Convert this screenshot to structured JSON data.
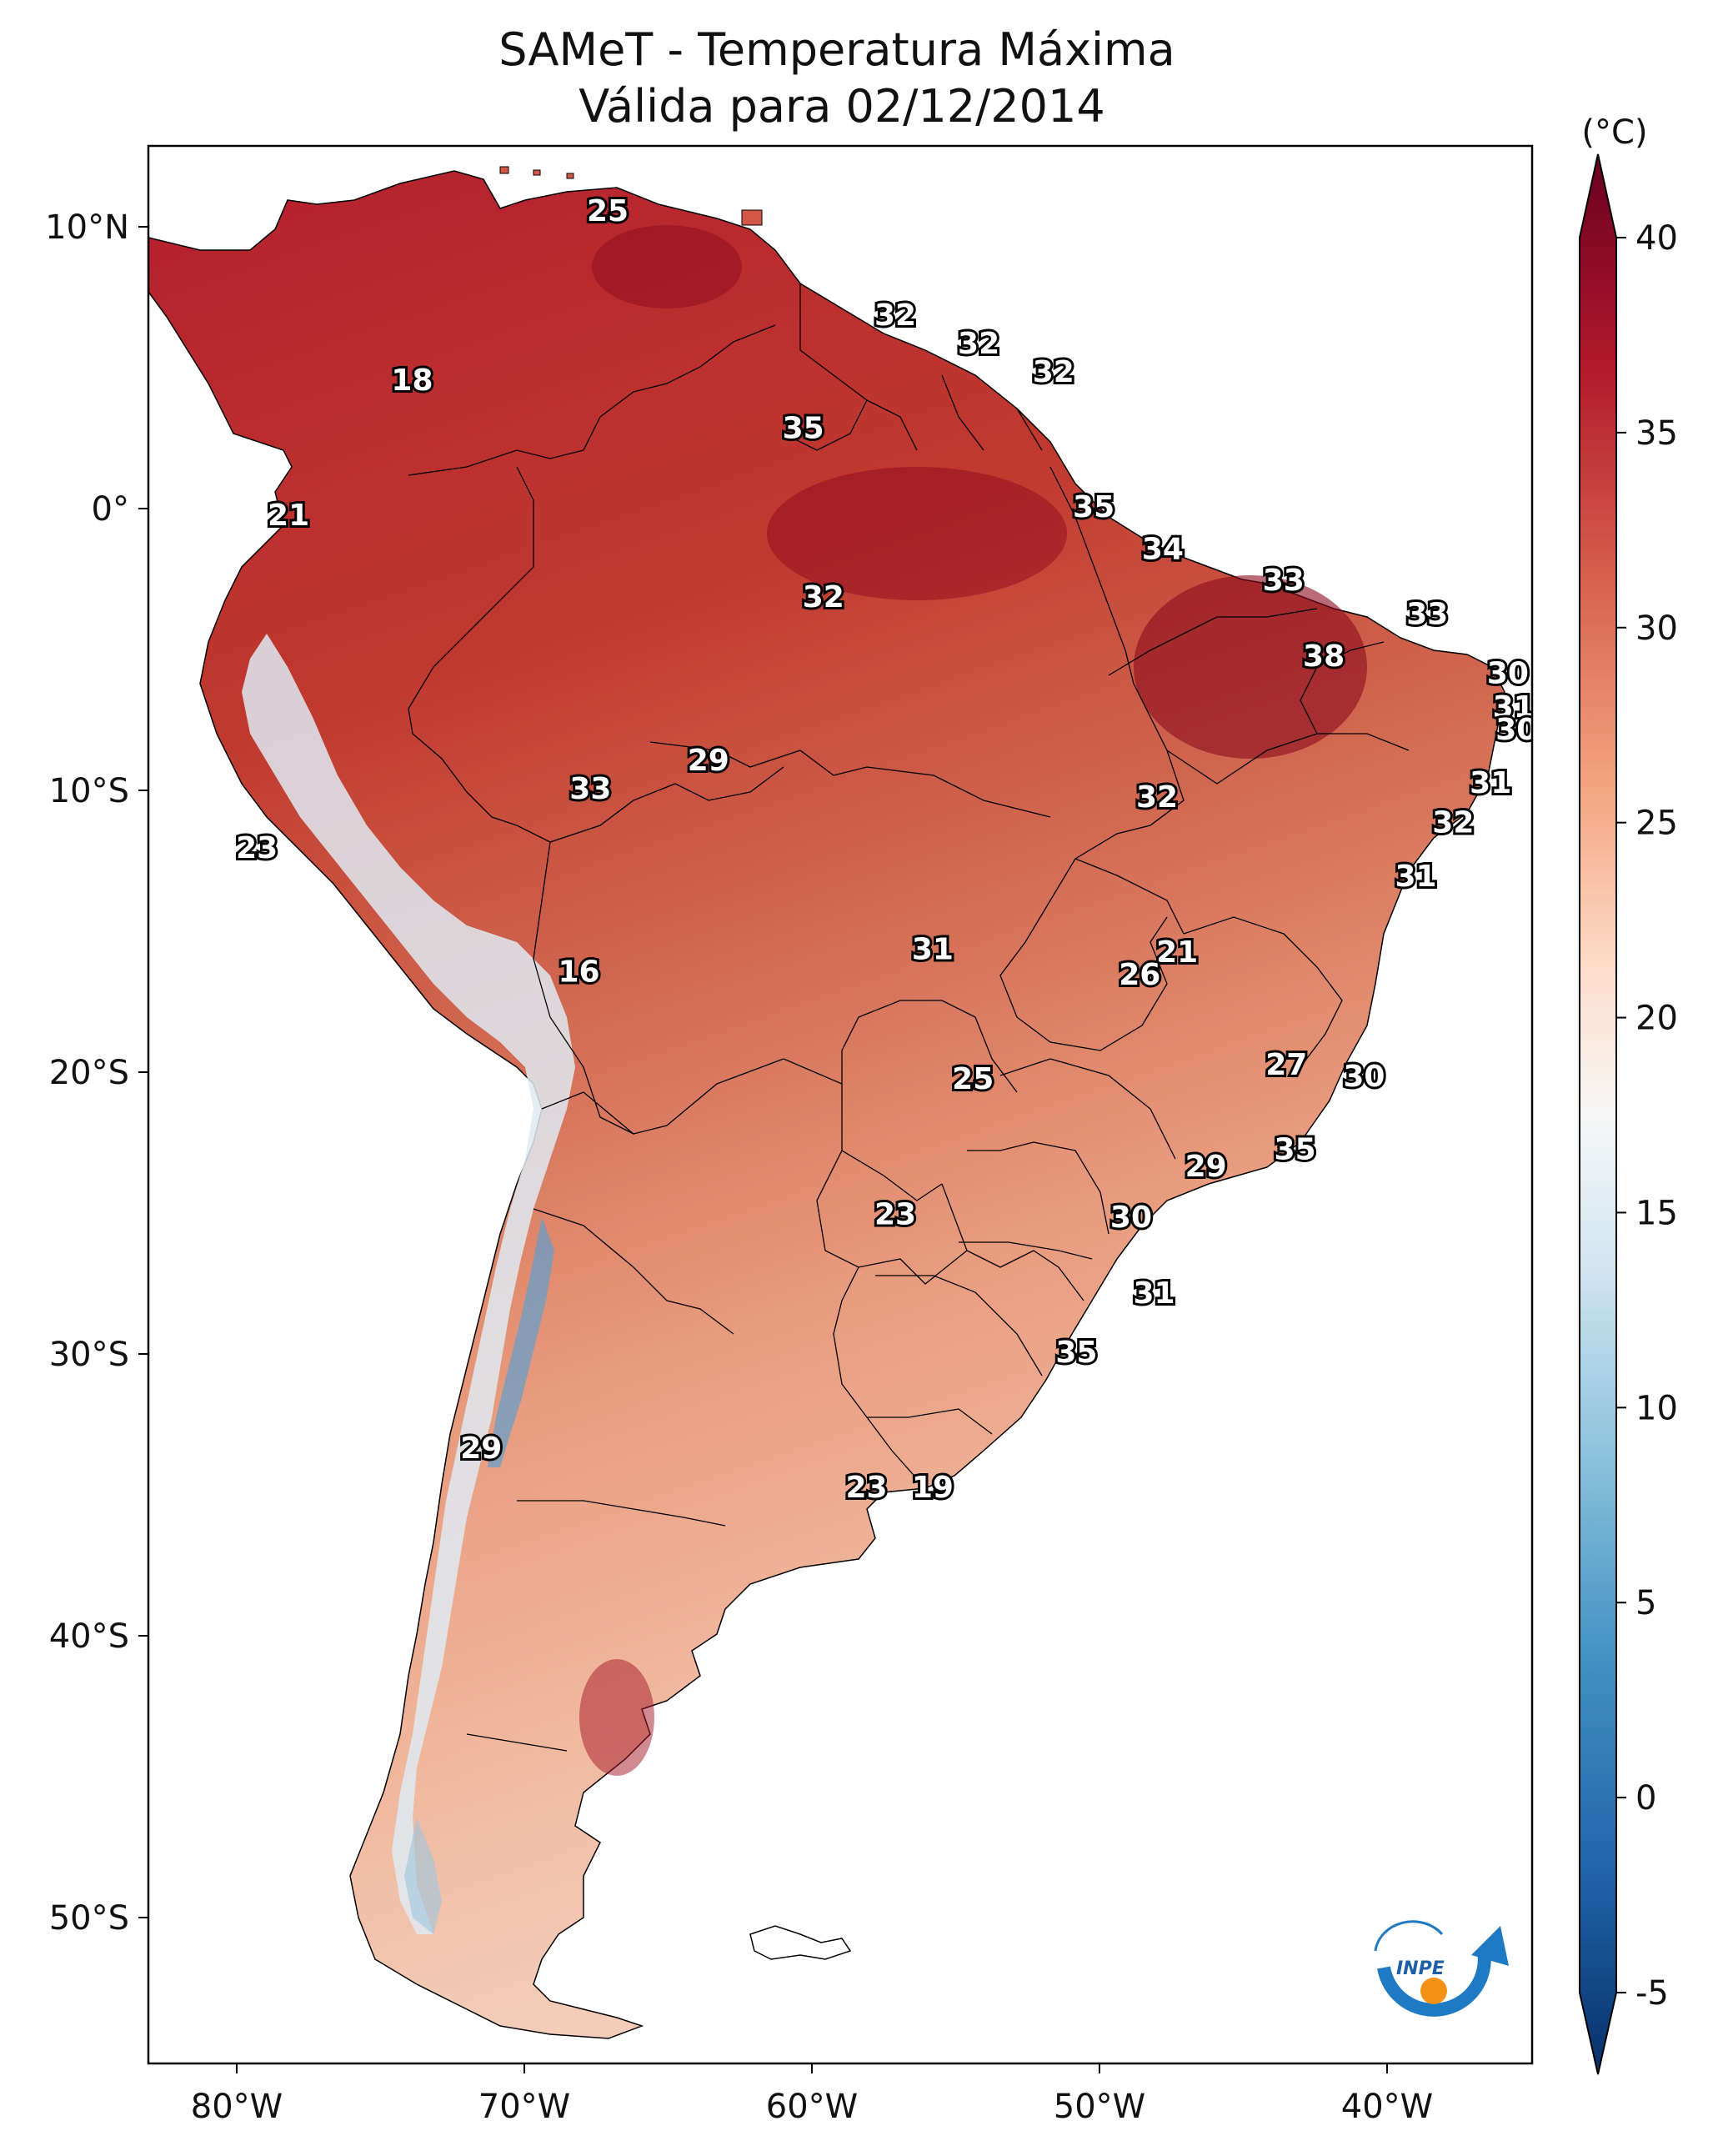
{
  "title": {
    "line1": "SAMeT - Temperatura Máxima",
    "line2": "Válida para 02/12/2014"
  },
  "colorbar": {
    "unit": "(°C)",
    "ticks": [
      "40",
      "35",
      "30",
      "25",
      "20",
      "15",
      "10",
      "5",
      "0",
      "-5"
    ],
    "min": -5,
    "max": 40
  },
  "axes": {
    "longitude_ticks": [
      "80°W",
      "70°W",
      "60°W",
      "50°W",
      "40°W"
    ],
    "latitude_ticks": [
      "10°N",
      "0°",
      "10°S",
      "20°S",
      "30°S",
      "40°S",
      "50°S"
    ]
  },
  "logo": {
    "text": "INPE"
  },
  "map_labels": [
    {
      "value": "25",
      "lon": -67.1,
      "lat": 10.5
    },
    {
      "value": "18",
      "lon": -73.9,
      "lat": 4.5
    },
    {
      "value": "32",
      "lon": -57.1,
      "lat": 6.8
    },
    {
      "value": "32",
      "lon": -54.2,
      "lat": 5.8
    },
    {
      "value": "32",
      "lon": -51.6,
      "lat": 4.8
    },
    {
      "value": "35",
      "lon": -60.3,
      "lat": 2.8
    },
    {
      "value": "21",
      "lon": -78.2,
      "lat": -0.3
    },
    {
      "value": "35",
      "lon": -50.2,
      "lat": 0.0
    },
    {
      "value": "34",
      "lon": -47.8,
      "lat": -1.5
    },
    {
      "value": "33",
      "lon": -43.6,
      "lat": -2.6
    },
    {
      "value": "32",
      "lon": -59.6,
      "lat": -3.2
    },
    {
      "value": "33",
      "lon": -38.6,
      "lat": -3.8
    },
    {
      "value": "38",
      "lon": -42.2,
      "lat": -5.3
    },
    {
      "value": "30",
      "lon": -35.8,
      "lat": -5.9
    },
    {
      "value": "31",
      "lon": -35.6,
      "lat": -7.1
    },
    {
      "value": "30",
      "lon": -35.5,
      "lat": -7.9
    },
    {
      "value": "29",
      "lon": -63.6,
      "lat": -9.0
    },
    {
      "value": "31",
      "lon": -36.4,
      "lat": -9.8
    },
    {
      "value": "33",
      "lon": -67.7,
      "lat": -10.0
    },
    {
      "value": "32",
      "lon": -48.0,
      "lat": -10.3
    },
    {
      "value": "32",
      "lon": -37.7,
      "lat": -11.2
    },
    {
      "value": "23",
      "lon": -79.3,
      "lat": -12.1
    },
    {
      "value": "31",
      "lon": -39.0,
      "lat": -13.1
    },
    {
      "value": "31",
      "lon": -55.8,
      "lat": -15.7
    },
    {
      "value": "21",
      "lon": -47.3,
      "lat": -15.8
    },
    {
      "value": "26",
      "lon": -48.6,
      "lat": -16.6
    },
    {
      "value": "16",
      "lon": -68.1,
      "lat": -16.5
    },
    {
      "value": "27",
      "lon": -43.5,
      "lat": -19.8
    },
    {
      "value": "30",
      "lon": -40.8,
      "lat": -20.2
    },
    {
      "value": "25",
      "lon": -54.4,
      "lat": -20.3
    },
    {
      "value": "35",
      "lon": -43.2,
      "lat": -22.8
    },
    {
      "value": "29",
      "lon": -46.3,
      "lat": -23.4
    },
    {
      "value": "23",
      "lon": -57.1,
      "lat": -25.1
    },
    {
      "value": "30",
      "lon": -48.9,
      "lat": -25.2
    },
    {
      "value": "31",
      "lon": -48.1,
      "lat": -27.9
    },
    {
      "value": "35",
      "lon": -50.8,
      "lat": -30.0
    },
    {
      "value": "29",
      "lon": -71.5,
      "lat": -33.4
    },
    {
      "value": "23",
      "lon": -58.1,
      "lat": -34.8
    },
    {
      "value": "19",
      "lon": -55.8,
      "lat": -34.8
    }
  ]
}
